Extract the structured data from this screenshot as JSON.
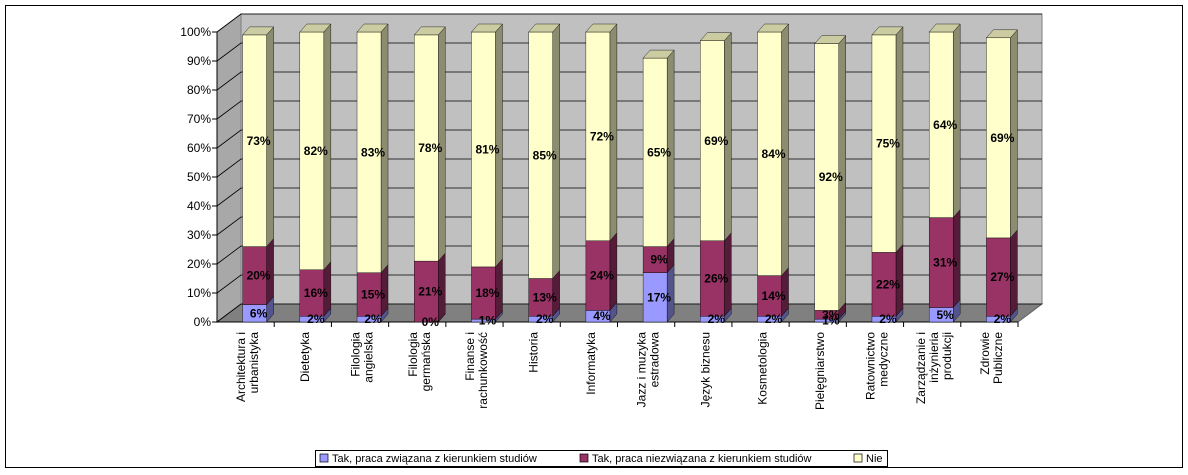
{
  "chart_data": {
    "type": "bar",
    "stacked": true,
    "percent_stacked": true,
    "three_d": true,
    "categories": [
      "Architektura i\nurbanistyka",
      "Dietetyka",
      "Filologia\nangielska",
      "Filologia\ngermańska",
      "Finanse i\nrachunkowość",
      "Historia",
      "Informatyka",
      "Jazz i muzyka\nestradowa",
      "Język biznesu",
      "Kosmetologia",
      "Pielęgniarstwo",
      "Ratownictwo\nmedyczne",
      "Zarządzanie i\ninżynieria\nprodukcji",
      "Zdrowie\nPubliczne"
    ],
    "series": [
      {
        "name": "Tak, praca związana z kierunkiem studiów",
        "color": "#9999ff",
        "values": [
          6,
          2,
          2,
          0,
          1,
          2,
          4,
          17,
          2,
          2,
          1,
          2,
          5,
          2
        ],
        "labels": [
          "6%",
          "2%",
          "2%",
          "0%",
          "1%",
          "2%",
          "4%",
          "17%",
          "2%",
          "2%",
          "1%",
          "2%",
          "5%",
          "2%"
        ]
      },
      {
        "name": "Tak, praca niezwiązana z kierunkiem studiów",
        "color": "#993366",
        "values": [
          20,
          16,
          15,
          21,
          18,
          13,
          24,
          9,
          26,
          14,
          3,
          22,
          31,
          27
        ],
        "labels": [
          "20%",
          "16%",
          "15%",
          "21%",
          "18%",
          "13%",
          "24%",
          "9%",
          "26%",
          "14%",
          "3%",
          "22%",
          "31%",
          "27%"
        ]
      },
      {
        "name": "Nie",
        "color": "#ffffcc",
        "values": [
          73,
          82,
          83,
          78,
          81,
          85,
          72,
          65,
          69,
          84,
          92,
          75,
          64,
          69
        ],
        "labels": [
          "73%",
          "82%",
          "83%",
          "78%",
          "81%",
          "85%",
          "72%",
          "65%",
          "69%",
          "84%",
          "92%",
          "75%",
          "64%",
          "69%"
        ]
      }
    ],
    "y_ticks": [
      "0%",
      "10%",
      "20%",
      "30%",
      "40%",
      "50%",
      "60%",
      "70%",
      "80%",
      "90%",
      "100%"
    ],
    "ylim": [
      0,
      100
    ],
    "grid": true,
    "legend": "bottom",
    "wall_color": "#c0c0c0",
    "floor_color": "#808080"
  }
}
